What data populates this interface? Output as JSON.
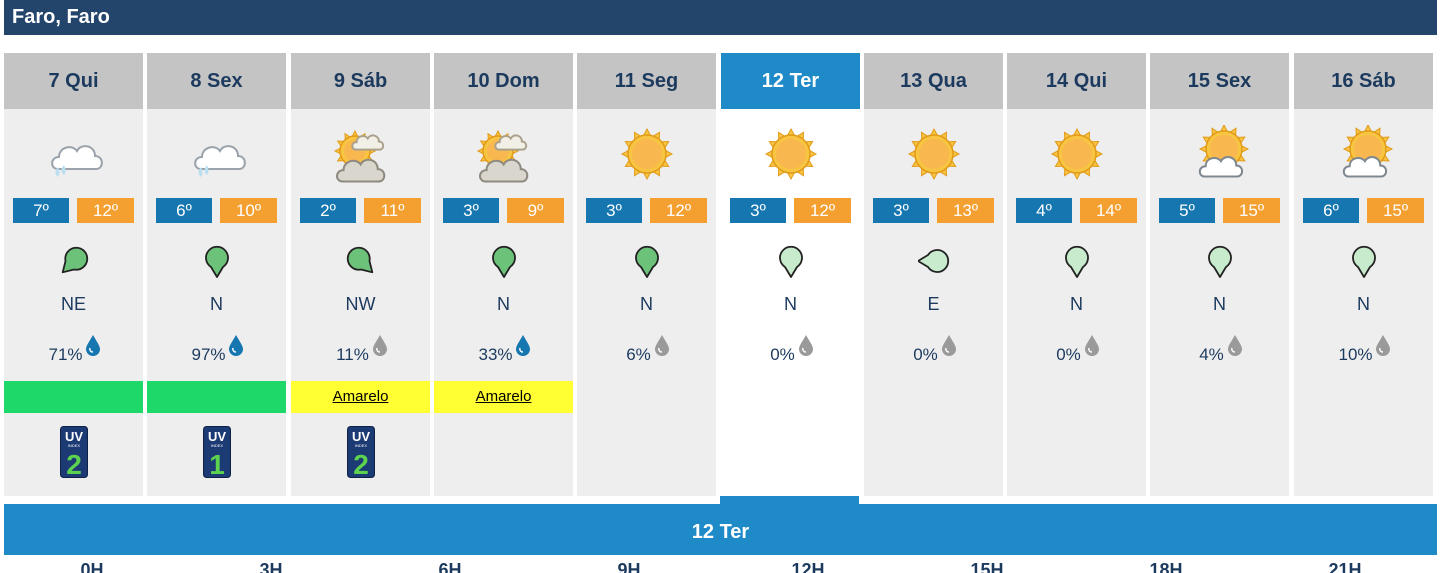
{
  "location": "Faro, Faro",
  "days": [
    {
      "label": "7 Qui",
      "weather_icon": "cloud-rain-icon",
      "tmin": "7º",
      "tmax": "12º",
      "wind": "NE",
      "precip": "71%",
      "drop_color": "#1576b0",
      "warning": "",
      "warning_color": "green",
      "uv": "2"
    },
    {
      "label": "8 Sex",
      "weather_icon": "cloud-rain-icon",
      "tmin": "6º",
      "tmax": "10º",
      "wind": "N",
      "precip": "97%",
      "drop_color": "#1576b0",
      "warning": "",
      "warning_color": "green",
      "uv": "1"
    },
    {
      "label": "9 Sáb",
      "weather_icon": "sun-cloud-icon",
      "tmin": "2º",
      "tmax": "11º",
      "wind": "NW",
      "precip": "11%",
      "drop_color": "#9a9a9a",
      "warning": "Amarelo",
      "warning_color": "yellow",
      "uv": "2"
    },
    {
      "label": "10 Dom",
      "weather_icon": "sun-cloud-icon",
      "tmin": "3º",
      "tmax": "9º",
      "wind": "N",
      "precip": "33%",
      "drop_color": "#1576b0",
      "warning": "Amarelo",
      "warning_color": "yellow",
      "uv": ""
    },
    {
      "label": "11 Seg",
      "weather_icon": "sun-icon",
      "tmin": "3º",
      "tmax": "12º",
      "wind": "N",
      "precip": "6%",
      "drop_color": "#9a9a9a",
      "warning": "",
      "warning_color": "",
      "uv": ""
    },
    {
      "label": "12 Ter",
      "weather_icon": "sun-icon",
      "tmin": "3º",
      "tmax": "12º",
      "wind": "N",
      "precip": "0%",
      "drop_color": "#9a9a9a",
      "warning": "",
      "warning_color": "",
      "uv": "",
      "selected": true
    },
    {
      "label": "13 Qua",
      "weather_icon": "sun-icon",
      "tmin": "3º",
      "tmax": "13º",
      "wind": "E",
      "precip": "0%",
      "drop_color": "#9a9a9a",
      "warning": "",
      "warning_color": "",
      "uv": ""
    },
    {
      "label": "14 Qui",
      "weather_icon": "sun-icon",
      "tmin": "4º",
      "tmax": "14º",
      "wind": "N",
      "precip": "0%",
      "drop_color": "#9a9a9a",
      "warning": "",
      "warning_color": "",
      "uv": ""
    },
    {
      "label": "15 Sex",
      "weather_icon": "sun-small-cloud-icon",
      "tmin": "5º",
      "tmax": "15º",
      "wind": "N",
      "precip": "4%",
      "drop_color": "#9a9a9a",
      "warning": "",
      "warning_color": "",
      "uv": ""
    },
    {
      "label": "16 Sáb",
      "weather_icon": "sun-small-cloud-icon",
      "tmin": "6º",
      "tmax": "15º",
      "wind": "N",
      "precip": "10%",
      "drop_color": "#9a9a9a",
      "warning": "",
      "warning_color": "",
      "uv": ""
    }
  ],
  "selected_day_title": "12 Ter",
  "hours": [
    "0H",
    "3H",
    "6H",
    "9H",
    "12H",
    "15H",
    "18H",
    "21H"
  ],
  "colors": {
    "title_bar": "#23456b",
    "selected": "#1f8ac8",
    "tmin": "#1576b0",
    "tmax": "#f4a030",
    "warning_green": "#1fd86a",
    "warning_yellow": "#ffff33"
  }
}
